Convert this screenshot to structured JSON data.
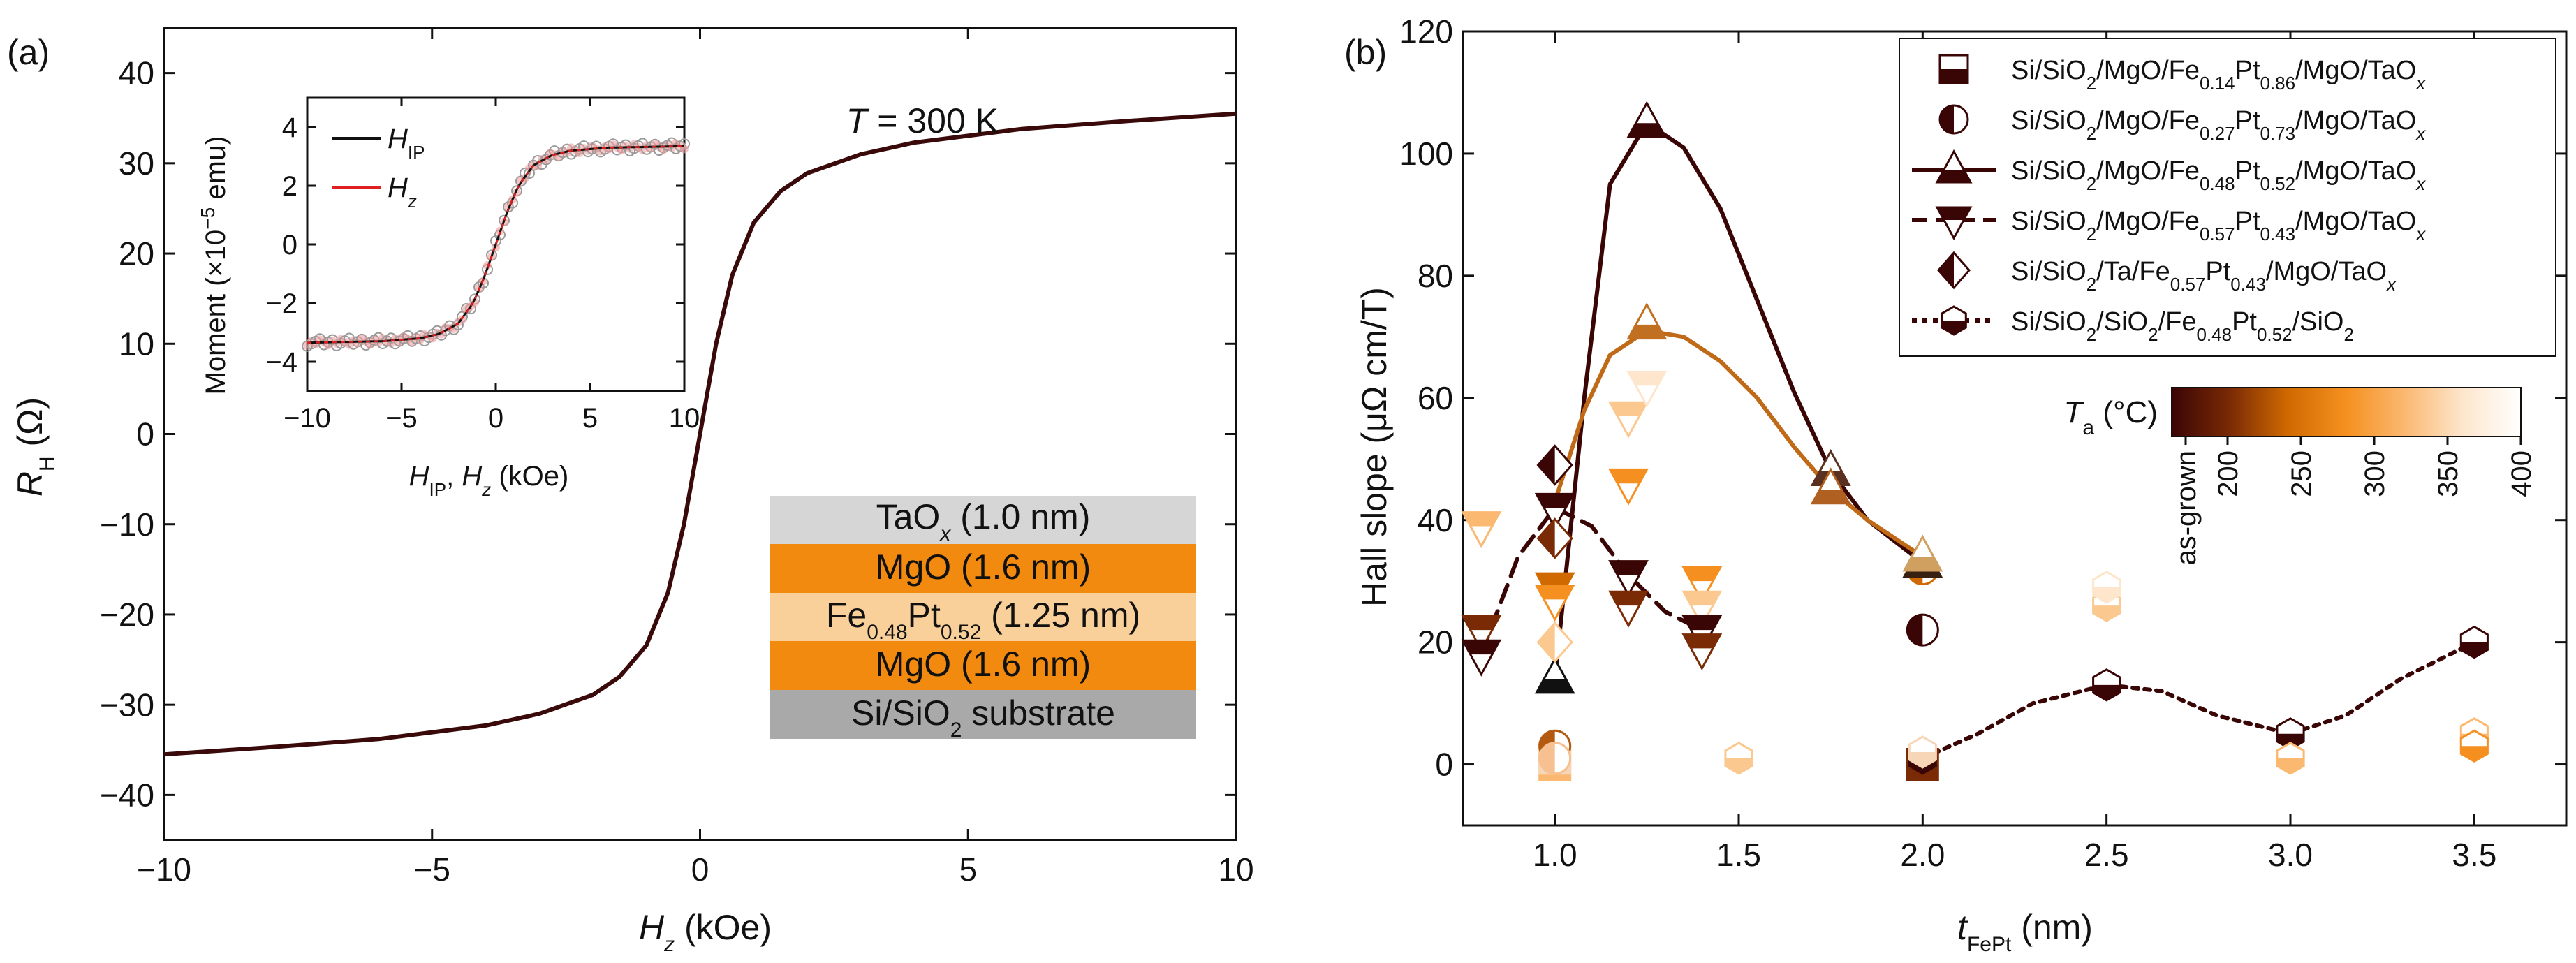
{
  "chart_data": [
    {
      "type": "line",
      "panel_label": "(a)",
      "annotation": {
        "italic": "T",
        "rest": " = 300 K"
      },
      "xlabel": {
        "italic": "H",
        "sub": "z",
        "rest": " (kOe)"
      },
      "ylabel": {
        "italic": "R",
        "sub": "H",
        "rest": " (Ω)"
      },
      "xlim": [
        -10,
        10
      ],
      "ylim": [
        -45,
        45
      ],
      "xticks": [
        -10,
        -5,
        0,
        5,
        10
      ],
      "xtick_labels": [
        "−10",
        "−5",
        "0",
        "5",
        "10"
      ],
      "yticks": [
        -40,
        -30,
        -20,
        -10,
        0,
        10,
        20,
        30,
        40
      ],
      "ytick_labels": [
        "−40",
        "−30",
        "−20",
        "−10",
        "0",
        "10",
        "20",
        "30",
        "40"
      ],
      "series": [
        {
          "name": "R_H",
          "color": "#3a0a0a",
          "x": [
            -10,
            -8,
            -6,
            -4,
            -3,
            -2,
            -1.5,
            -1,
            -0.6,
            -0.3,
            0,
            0.3,
            0.6,
            1,
            1.5,
            2,
            3,
            4,
            6,
            8,
            10
          ],
          "y": [
            -35.5,
            -34.7,
            -33.8,
            -32.3,
            -31,
            -28.9,
            -26.9,
            -23.4,
            -17.6,
            -10,
            0,
            10,
            17.6,
            23.4,
            26.9,
            28.9,
            31,
            32.3,
            33.8,
            34.7,
            35.5
          ]
        }
      ],
      "inset": {
        "type": "line",
        "ylabel": "Moment (×10",
        "ylabel_sup": "−5",
        "ylabel_end": " emu)",
        "xlabel": {
          "p1": "H",
          "p1sub": "IP",
          "sep": ", ",
          "p2": "H",
          "p2sub": "z",
          "rest": " (kOe)"
        },
        "xlim": [
          -10,
          10
        ],
        "ylim": [
          -5,
          5
        ],
        "xticks": [
          -10,
          -5,
          0,
          5,
          10
        ],
        "xtick_labels": [
          "−10",
          "−5",
          "0",
          "5",
          "10"
        ],
        "yticks": [
          -4,
          -2,
          0,
          2,
          4
        ],
        "ytick_labels": [
          "−4",
          "−2",
          "0",
          "2",
          "4"
        ],
        "legend": [
          {
            "name": "H",
            "sub": "IP",
            "color": "#111111"
          },
          {
            "name": "H",
            "sub": "z",
            "color": "#e02020"
          }
        ],
        "x": [
          -10,
          -6,
          -4,
          -3,
          -2,
          -1.2,
          -0.6,
          0,
          0.6,
          1.2,
          2,
          3,
          4,
          6,
          10
        ],
        "y": [
          -3.35,
          -3.3,
          -3.2,
          -3.05,
          -2.7,
          -2.0,
          -1.1,
          0,
          1.1,
          2.0,
          2.7,
          3.05,
          3.2,
          3.3,
          3.35
        ]
      },
      "stack": [
        {
          "text": "TaO",
          "italic_sub": "x",
          "rest": " (1.0 nm)",
          "color": "#d6d6d6"
        },
        {
          "text": "MgO (1.6 nm)",
          "color": "#f28a10"
        },
        {
          "text": "Fe",
          "s1": "0.48",
          "mid": "Pt",
          "s2": "0.52",
          "rest": " (1.25 nm)",
          "color": "#f9d09a"
        },
        {
          "text": "MgO (1.6 nm)",
          "color": "#f28a10"
        },
        {
          "text": "Si/SiO",
          "s1": "2",
          "rest": " substrate",
          "color": "#a9a9a9"
        }
      ]
    },
    {
      "type": "scatter",
      "panel_label": "(b)",
      "xlabel": {
        "italic": "t",
        "sub": "FePt",
        "rest": " (nm)"
      },
      "ylabel": "Hall slope (μΩ cm/T)",
      "xlim": [
        0.75,
        3.75
      ],
      "ylim": [
        -10,
        120
      ],
      "xticks": [
        1.0,
        1.5,
        2.0,
        2.5,
        3.0,
        3.5
      ],
      "xtick_labels": [
        "1.0",
        "1.5",
        "2.0",
        "2.5",
        "3.0",
        "3.5"
      ],
      "yticks": [
        0,
        20,
        40,
        60,
        80,
        100,
        120
      ],
      "ytick_labels": [
        "0",
        "20",
        "40",
        "60",
        "80",
        "100",
        "120"
      ],
      "legend": [
        {
          "marker": "square-halfbottom",
          "line": "none",
          "parts": [
            "Si/SiO",
            "2",
            "/MgO/Fe",
            "0.14",
            "Pt",
            "0.86",
            "/MgO/TaO",
            "x"
          ]
        },
        {
          "marker": "circle-halfleft",
          "line": "none",
          "parts": [
            "Si/SiO",
            "2",
            "/MgO/Fe",
            "0.27",
            "Pt",
            "0.73",
            "/MgO/TaO",
            "x"
          ]
        },
        {
          "marker": "triangle-up-halfbottom",
          "line": "solid",
          "parts": [
            "Si/SiO",
            "2",
            "/MgO/Fe",
            "0.48",
            "Pt",
            "0.52",
            "/MgO/TaO",
            "x"
          ]
        },
        {
          "marker": "triangle-down-halftop",
          "line": "dash",
          "parts": [
            "Si/SiO",
            "2",
            "/MgO/Fe",
            "0.57",
            "Pt",
            "0.43",
            "/MgO/TaO",
            "x"
          ]
        },
        {
          "marker": "diamond-halfleft",
          "line": "none",
          "parts": [
            "Si/SiO",
            "2",
            "/Ta/Fe",
            "0.57",
            "Pt",
            "0.43",
            "/MgO/TaO",
            "x"
          ]
        },
        {
          "marker": "hexagon-halfbottom",
          "line": "dot",
          "parts": [
            "Si/SiO",
            "2",
            "/SiO",
            "2",
            "/Fe",
            "0.48",
            "Pt",
            "0.52",
            "/SiO",
            "2"
          ]
        }
      ],
      "colorbar": {
        "label": "T",
        "label_sub": "a",
        "label_rest": " (°C)",
        "tick_labels": [
          "as-grown",
          "200",
          "250",
          "300",
          "350",
          "400"
        ],
        "colors": [
          "#3a0505",
          "#7a2a05",
          "#d06a00",
          "#f59020",
          "#fbb870",
          "#fde6cc",
          "#ffffff"
        ]
      },
      "series": [
        {
          "name": "Fe0.14Pt0.86 MgO",
          "marker": "square",
          "points": [
            {
              "x": 1.0,
              "y": 0,
              "color": "#fbb870"
            },
            {
              "x": 1.0,
              "y": 1,
              "color": "#f6d6b6"
            },
            {
              "x": 2.0,
              "y": 0,
              "color": "#7a2a05"
            }
          ]
        },
        {
          "name": "Fe0.27Pt0.73 MgO",
          "marker": "circle",
          "points": [
            {
              "x": 1.0,
              "y": 3,
              "color": "#b45a10"
            },
            {
              "x": 1.0,
              "y": 1,
              "color": "#f6c090"
            },
            {
              "x": 2.0,
              "y": 22,
              "color": "#3a0505"
            },
            {
              "x": 2.0,
              "y": 32,
              "color": "#d06a00"
            }
          ]
        },
        {
          "name": "Fe0.48Pt0.52 MgO",
          "marker": "triangle-up",
          "points": [
            {
              "x": 1.0,
              "y": 14,
              "color": "#111111"
            },
            {
              "x": 1.25,
              "y": 105,
              "color": "#3a0505"
            },
            {
              "x": 1.25,
              "y": 72,
              "color": "#c07020"
            },
            {
              "x": 1.75,
              "y": 48,
              "color": "#5a3020"
            },
            {
              "x": 1.75,
              "y": 45,
              "color": "#b06020"
            },
            {
              "x": 2.0,
              "y": 33,
              "color": "#3a2010"
            },
            {
              "x": 2.0,
              "y": 34,
              "color": "#d0a060"
            }
          ],
          "curves": [
            {
              "color": "#3a0505",
              "x": [
                1.0,
                1.08,
                1.15,
                1.25,
                1.35,
                1.45,
                1.55,
                1.65,
                1.75,
                1.85,
                2.0
              ],
              "y": [
                14,
                60,
                95,
                105,
                101,
                91,
                76,
                61,
                48,
                40,
                33
              ]
            },
            {
              "color": "#c06a18",
              "x": [
                1.0,
                1.08,
                1.15,
                1.25,
                1.35,
                1.45,
                1.55,
                1.65,
                1.75,
                1.85,
                2.0
              ],
              "y": [
                43,
                58,
                67,
                71,
                70,
                66,
                60,
                52,
                45,
                40,
                34
              ]
            }
          ]
        },
        {
          "name": "Fe0.57Pt0.43 MgO",
          "marker": "triangle-down",
          "points": [
            {
              "x": 0.8,
              "y": 39,
              "color": "#fbb870"
            },
            {
              "x": 0.8,
              "y": 22,
              "color": "#7a2a05"
            },
            {
              "x": 0.8,
              "y": 18,
              "color": "#3a0505"
            },
            {
              "x": 1.0,
              "y": 42,
              "color": "#3a0505"
            },
            {
              "x": 1.0,
              "y": 29,
              "color": "#d06a00"
            },
            {
              "x": 1.0,
              "y": 27,
              "color": "#f59020"
            },
            {
              "x": 1.2,
              "y": 57,
              "color": "#fbc890"
            },
            {
              "x": 1.2,
              "y": 46,
              "color": "#f59020"
            },
            {
              "x": 1.2,
              "y": 31,
              "color": "#3a0505"
            },
            {
              "x": 1.2,
              "y": 26,
              "color": "#7a2a05"
            },
            {
              "x": 1.25,
              "y": 62,
              "color": "#fde6cc"
            },
            {
              "x": 1.4,
              "y": 30,
              "color": "#f59020"
            },
            {
              "x": 1.4,
              "y": 26,
              "color": "#fbc890"
            },
            {
              "x": 1.4,
              "y": 22,
              "color": "#3a0505"
            },
            {
              "x": 1.4,
              "y": 19,
              "color": "#7a2a05"
            }
          ],
          "curves": [
            {
              "color": "#3a0505",
              "dash": "dash",
              "x": [
                0.8,
                0.9,
                1.0,
                1.1,
                1.2,
                1.3,
                1.4
              ],
              "y": [
                18,
                34,
                42,
                39,
                31,
                25,
                22
              ]
            }
          ]
        },
        {
          "name": "Ta/Fe0.57Pt0.43",
          "marker": "diamond",
          "points": [
            {
              "x": 1.0,
              "y": 49,
              "color": "#3a0505"
            },
            {
              "x": 1.0,
              "y": 37,
              "color": "#7a2a05"
            },
            {
              "x": 1.0,
              "y": 20,
              "color": "#fbc890"
            }
          ]
        },
        {
          "name": "SiO2/Fe0.48Pt0.52/SiO2",
          "marker": "hexagon",
          "points": [
            {
              "x": 1.5,
              "y": 1,
              "color": "#fbc890"
            },
            {
              "x": 2.0,
              "y": 1,
              "color": "#3a0505"
            },
            {
              "x": 2.0,
              "y": 2,
              "color": "#f6d6b6"
            },
            {
              "x": 2.5,
              "y": 13,
              "color": "#3a0505"
            },
            {
              "x": 2.5,
              "y": 26,
              "color": "#fbc890"
            },
            {
              "x": 2.5,
              "y": 29,
              "color": "#fde6cc"
            },
            {
              "x": 3.0,
              "y": 5,
              "color": "#3a0505"
            },
            {
              "x": 3.0,
              "y": 1,
              "color": "#fbb870"
            },
            {
              "x": 3.5,
              "y": 20,
              "color": "#3a0505"
            },
            {
              "x": 3.5,
              "y": 5,
              "color": "#fbb870"
            },
            {
              "x": 3.5,
              "y": 3,
              "color": "#f59020"
            }
          ],
          "curves": [
            {
              "color": "#3a0505",
              "dash": "dot",
              "x": [
                2.0,
                2.15,
                2.3,
                2.5,
                2.65,
                2.8,
                3.0,
                3.15,
                3.3,
                3.5
              ],
              "y": [
                1,
                5,
                10,
                13,
                12,
                8,
                5,
                8,
                14,
                20
              ]
            }
          ]
        }
      ]
    }
  ]
}
